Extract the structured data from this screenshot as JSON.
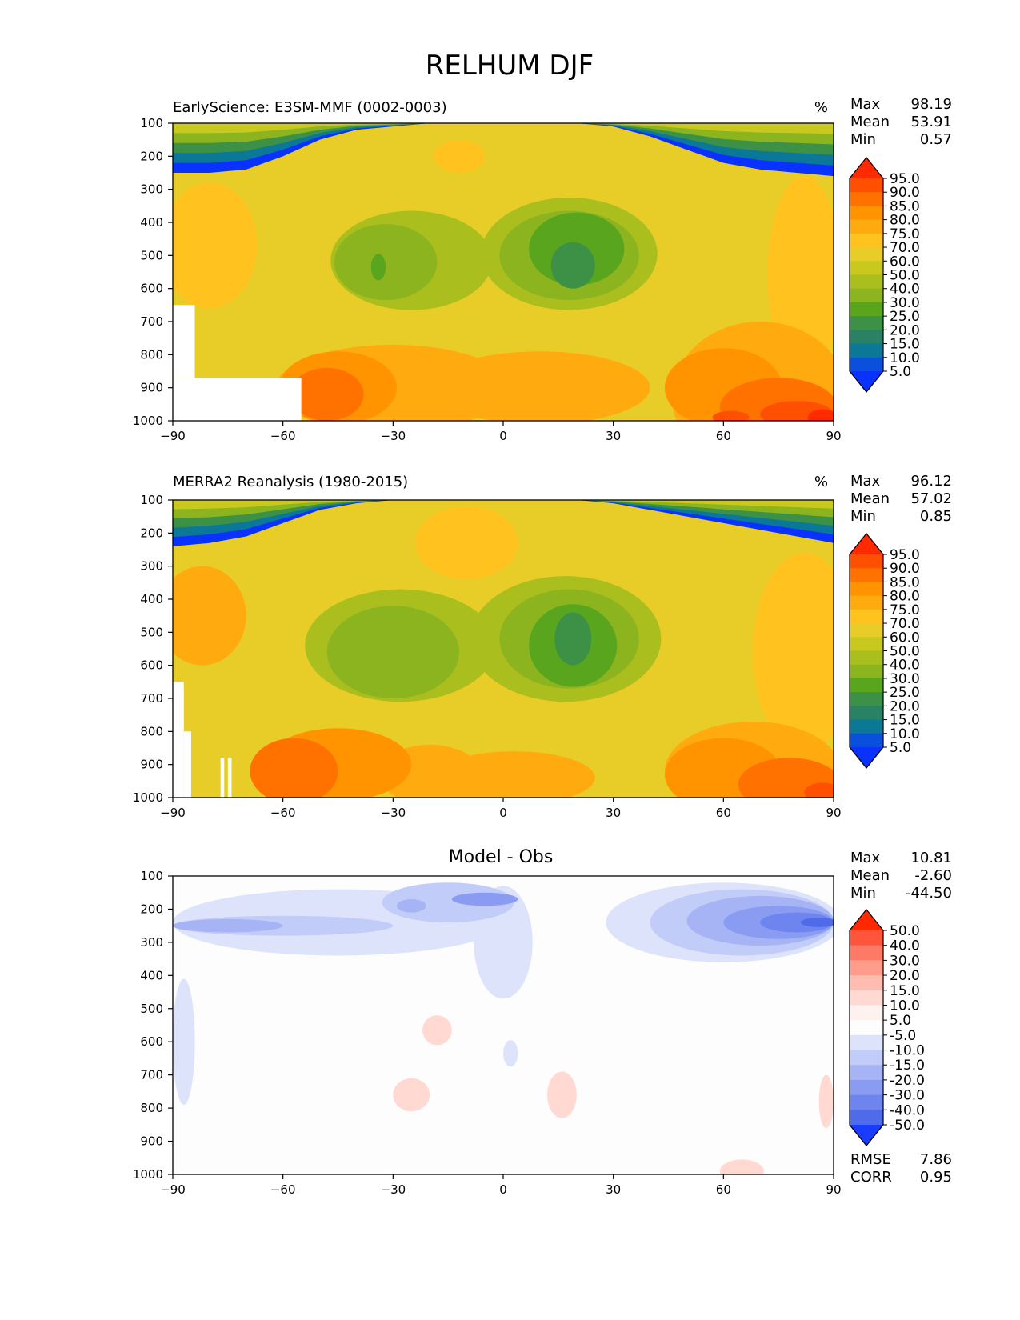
{
  "figure": {
    "title": "RELHUM DJF"
  },
  "chart_data": [
    {
      "type": "heatmap",
      "panel_title": "EarlyScience: E3SM-MMF (0002-0003)",
      "units": "%",
      "x_ticks": [
        -90,
        -60,
        -30,
        0,
        30,
        60,
        90
      ],
      "y_ticks": [
        100,
        200,
        300,
        400,
        500,
        600,
        700,
        800,
        900,
        1000
      ],
      "xlim": [
        -90,
        90
      ],
      "ylim": [
        1000,
        100
      ],
      "stats": [
        {
          "label": "Max",
          "value": "98.19"
        },
        {
          "label": "Mean",
          "value": "53.91"
        },
        {
          "label": "Min",
          "value": "0.57"
        }
      ],
      "colorbar": {
        "levels": [
          "95.0",
          "90.0",
          "85.0",
          "80.0",
          "75.0",
          "70.0",
          "60.0",
          "50.0",
          "40.0",
          "30.0",
          "25.0",
          "20.0",
          "15.0",
          "10.0",
          "5.0"
        ],
        "colors": [
          "#ff2a00",
          "#ff4f00",
          "#ff7200",
          "#ff9400",
          "#ffab10",
          "#ffc21e",
          "#e8cd28",
          "#c8c81e",
          "#aabe1e",
          "#8cb41e",
          "#5aa51e",
          "#3c9146",
          "#2a8264",
          "#0a7896",
          "#0a50dc",
          "#0a32ff"
        ]
      },
      "layers": [
        {
          "level": 8,
          "blobs": [
            {
              "x": -25,
              "y": 515,
              "rx": 22,
              "ry": 150
            },
            {
              "x": 18,
              "y": 495,
              "rx": 24,
              "ry": 170
            }
          ]
        },
        {
          "level": 9,
          "blobs": [
            {
              "x": -32,
              "y": 520,
              "rx": 14,
              "ry": 115
            },
            {
              "x": 18,
              "y": 500,
              "rx": 19,
              "ry": 135
            }
          ]
        },
        {
          "level": 10,
          "blobs": [
            {
              "x": -34,
              "y": 535,
              "rx": 2,
              "ry": 40
            },
            {
              "x": 20,
              "y": 480,
              "rx": 13,
              "ry": 110
            }
          ]
        },
        {
          "level": 11,
          "blobs": [
            {
              "x": 19,
              "y": 530,
              "rx": 6,
              "ry": 70
            }
          ]
        },
        {
          "level": 5,
          "blobs": [
            {
              "x": -80,
              "y": 470,
              "rx": 13,
              "ry": 190
            },
            {
              "x": 82,
              "y": 560,
              "rx": 10,
              "ry": 300
            },
            {
              "x": -12,
              "y": 200,
              "rx": 7,
              "ry": 50
            }
          ]
        },
        {
          "level": 4,
          "blobs": [
            {
              "x": -30,
              "y": 900,
              "rx": 32,
              "ry": 130
            },
            {
              "x": 10,
              "y": 900,
              "rx": 30,
              "ry": 110
            },
            {
              "x": 70,
              "y": 930,
              "rx": 24,
              "ry": 230
            }
          ]
        },
        {
          "level": 3,
          "blobs": [
            {
              "x": -45,
              "y": 900,
              "rx": 16,
              "ry": 110
            },
            {
              "x": 60,
              "y": 900,
              "rx": 16,
              "ry": 120
            }
          ]
        },
        {
          "level": 2,
          "blobs": [
            {
              "x": -48,
              "y": 920,
              "rx": 10,
              "ry": 80
            },
            {
              "x": 75,
              "y": 960,
              "rx": 16,
              "ry": 90
            }
          ]
        },
        {
          "level": 1,
          "blobs": [
            {
              "x": 80,
              "y": 980,
              "rx": 10,
              "ry": 40
            },
            {
              "x": 62,
              "y": 990,
              "rx": 5,
              "ry": 20
            }
          ]
        },
        {
          "level": 0,
          "blobs": [
            {
              "x": 87,
              "y": 990,
              "rx": 4,
              "ry": 25
            }
          ]
        }
      ],
      "top_bands": {
        "y_top": [
          100,
          100,
          100,
          100,
          100,
          100,
          100,
          100,
          100,
          100,
          100,
          100,
          100,
          100,
          100,
          100,
          100,
          100,
          100
        ],
        "y_bottom": [
          250,
          250,
          240,
          200,
          150,
          120,
          110,
          100,
          100,
          100,
          100,
          100,
          110,
          140,
          180,
          220,
          240,
          250,
          260
        ],
        "levels": [
          15,
          13,
          11,
          9,
          7
        ]
      },
      "missing": [
        {
          "x0": -90,
          "x1": -84,
          "y0": 650,
          "y1": 870
        },
        {
          "x0": -90,
          "x1": -55,
          "y0": 870,
          "y1": 1000
        }
      ]
    },
    {
      "type": "heatmap",
      "panel_title": "MERRA2 Reanalysis (1980-2015)",
      "units": "%",
      "x_ticks": [
        -90,
        -60,
        -30,
        0,
        30,
        60,
        90
      ],
      "y_ticks": [
        100,
        200,
        300,
        400,
        500,
        600,
        700,
        800,
        900,
        1000
      ],
      "xlim": [
        -90,
        90
      ],
      "ylim": [
        1000,
        100
      ],
      "stats": [
        {
          "label": "Max",
          "value": "96.12"
        },
        {
          "label": "Mean",
          "value": "57.02"
        },
        {
          "label": "Min",
          "value": "0.85"
        }
      ],
      "colorbar": {
        "levels": [
          "95.0",
          "90.0",
          "85.0",
          "80.0",
          "75.0",
          "70.0",
          "60.0",
          "50.0",
          "40.0",
          "30.0",
          "25.0",
          "20.0",
          "15.0",
          "10.0",
          "5.0"
        ],
        "colors": [
          "#ff2a00",
          "#ff4f00",
          "#ff7200",
          "#ff9400",
          "#ffab10",
          "#ffc21e",
          "#e8cd28",
          "#c8c81e",
          "#aabe1e",
          "#8cb41e",
          "#5aa51e",
          "#3c9146",
          "#2a8264",
          "#0a7896",
          "#0a50dc",
          "#0a32ff"
        ]
      },
      "layers": [
        {
          "level": 8,
          "blobs": [
            {
              "x": -28,
              "y": 540,
              "rx": 26,
              "ry": 170
            },
            {
              "x": 17,
              "y": 520,
              "rx": 26,
              "ry": 190
            }
          ]
        },
        {
          "level": 9,
          "blobs": [
            {
              "x": -30,
              "y": 560,
              "rx": 18,
              "ry": 140
            },
            {
              "x": 18,
              "y": 520,
              "rx": 19,
              "ry": 150
            }
          ]
        },
        {
          "level": 10,
          "blobs": [
            {
              "x": 19,
              "y": 540,
              "rx": 12,
              "ry": 125
            }
          ]
        },
        {
          "level": 11,
          "blobs": [
            {
              "x": 19,
              "y": 520,
              "rx": 5,
              "ry": 80
            }
          ]
        },
        {
          "level": 5,
          "blobs": [
            {
              "x": 82,
              "y": 560,
              "rx": 14,
              "ry": 300
            },
            {
              "x": -10,
              "y": 230,
              "rx": 14,
              "ry": 110
            }
          ]
        },
        {
          "level": 4,
          "blobs": [
            {
              "x": -82,
              "y": 450,
              "rx": 12,
              "ry": 150
            },
            {
              "x": -20,
              "y": 930,
              "rx": 14,
              "ry": 90
            },
            {
              "x": 3,
              "y": 940,
              "rx": 22,
              "ry": 80
            },
            {
              "x": 68,
              "y": 920,
              "rx": 24,
              "ry": 150
            }
          ]
        },
        {
          "level": 3,
          "blobs": [
            {
              "x": -45,
              "y": 900,
              "rx": 20,
              "ry": 110
            },
            {
              "x": 60,
              "y": 930,
              "rx": 16,
              "ry": 110
            }
          ]
        },
        {
          "level": 2,
          "blobs": [
            {
              "x": -57,
              "y": 920,
              "rx": 12,
              "ry": 100
            },
            {
              "x": 78,
              "y": 960,
              "rx": 14,
              "ry": 80
            }
          ]
        },
        {
          "level": 1,
          "blobs": [
            {
              "x": 87,
              "y": 985,
              "rx": 5,
              "ry": 30
            }
          ]
        }
      ],
      "top_bands": {
        "y_top": [
          100,
          100,
          100,
          100,
          100,
          100,
          100,
          100,
          100,
          100,
          100,
          100,
          100,
          100,
          100,
          100,
          100,
          100,
          100
        ],
        "y_bottom": [
          240,
          230,
          210,
          170,
          130,
          110,
          100,
          100,
          100,
          100,
          100,
          100,
          110,
          130,
          150,
          170,
          190,
          210,
          230
        ],
        "levels": [
          15,
          13,
          11,
          9,
          7
        ]
      },
      "missing": [
        {
          "x0": -90,
          "x1": -87,
          "y0": 650,
          "y1": 1000
        },
        {
          "x0": -87,
          "x1": -85,
          "y0": 800,
          "y1": 1000
        },
        {
          "x0": -77,
          "x1": -76,
          "y0": 880,
          "y1": 1000
        },
        {
          "x0": -75,
          "x1": -74,
          "y0": 880,
          "y1": 1000
        }
      ]
    },
    {
      "type": "heatmap",
      "panel_title": "Model - Obs",
      "x_ticks": [
        -90,
        -60,
        -30,
        0,
        30,
        60,
        90
      ],
      "y_ticks": [
        100,
        200,
        300,
        400,
        500,
        600,
        700,
        800,
        900,
        1000
      ],
      "xlim": [
        -90,
        90
      ],
      "ylim": [
        1000,
        100
      ],
      "stats": [
        {
          "label": "Max",
          "value": "10.81"
        },
        {
          "label": "Mean",
          "value": "-2.60"
        },
        {
          "label": "Min",
          "value": "-44.50"
        }
      ],
      "stats_bottom": [
        {
          "label": "RMSE",
          "value": "7.86"
        },
        {
          "label": "CORR",
          "value": "0.95"
        }
      ],
      "colorbar": {
        "levels": [
          "50.0",
          "40.0",
          "30.0",
          "20.0",
          "15.0",
          "10.0",
          "5.0",
          "-5.0",
          "-10.0",
          "-15.0",
          "-20.0",
          "-30.0",
          "-40.0",
          "-50.0"
        ],
        "colors": [
          "#ff2800",
          "#ff553d",
          "#ff7a66",
          "#ff9c8c",
          "#ffbcb0",
          "#ffd9d2",
          "#fdf2ef",
          "#fdfdfd",
          "#dde3fb",
          "#c2ccf8",
          "#a6b4f5",
          "#8a9cf1",
          "#6e84ee",
          "#506bea",
          "#1a3cff"
        ]
      },
      "layers": [
        {
          "level": 8,
          "blobs": [
            {
              "x": -45,
              "y": 240,
              "rx": 45,
              "ry": 100
            },
            {
              "x": 60,
              "y": 240,
              "rx": 32,
              "ry": 120
            },
            {
              "x": 0,
              "y": 300,
              "rx": 8,
              "ry": 170
            },
            {
              "x": -87,
              "y": 600,
              "rx": 3,
              "ry": 190
            },
            {
              "x": 2,
              "y": 635,
              "rx": 2,
              "ry": 40
            }
          ]
        },
        {
          "level": 9,
          "blobs": [
            {
              "x": -60,
              "y": 250,
              "rx": 30,
              "ry": 30
            },
            {
              "x": -15,
              "y": 180,
              "rx": 18,
              "ry": 60
            },
            {
              "x": 65,
              "y": 240,
              "rx": 25,
              "ry": 100
            }
          ]
        },
        {
          "level": 10,
          "blobs": [
            {
              "x": -75,
              "y": 250,
              "rx": 15,
              "ry": 20
            },
            {
              "x": -25,
              "y": 190,
              "rx": 4,
              "ry": 20
            },
            {
              "x": 70,
              "y": 235,
              "rx": 20,
              "ry": 75
            }
          ]
        },
        {
          "level": 11,
          "blobs": [
            {
              "x": -5,
              "y": 170,
              "rx": 9,
              "ry": 20
            },
            {
              "x": 75,
              "y": 240,
              "rx": 15,
              "ry": 50
            }
          ]
        },
        {
          "level": 12,
          "blobs": [
            {
              "x": 80,
              "y": 240,
              "rx": 10,
              "ry": 30
            }
          ]
        },
        {
          "level": 13,
          "blobs": [
            {
              "x": 86,
              "y": 240,
              "rx": 5,
              "ry": 14
            }
          ]
        },
        {
          "level": 5,
          "blobs": [
            {
              "x": -18,
              "y": 565,
              "rx": 4,
              "ry": 45
            },
            {
              "x": -25,
              "y": 760,
              "rx": 5,
              "ry": 50
            },
            {
              "x": 16,
              "y": 760,
              "rx": 4,
              "ry": 70
            },
            {
              "x": 65,
              "y": 990,
              "rx": 6,
              "ry": 35
            },
            {
              "x": 88,
              "y": 780,
              "rx": 2,
              "ry": 80
            }
          ]
        }
      ]
    }
  ]
}
